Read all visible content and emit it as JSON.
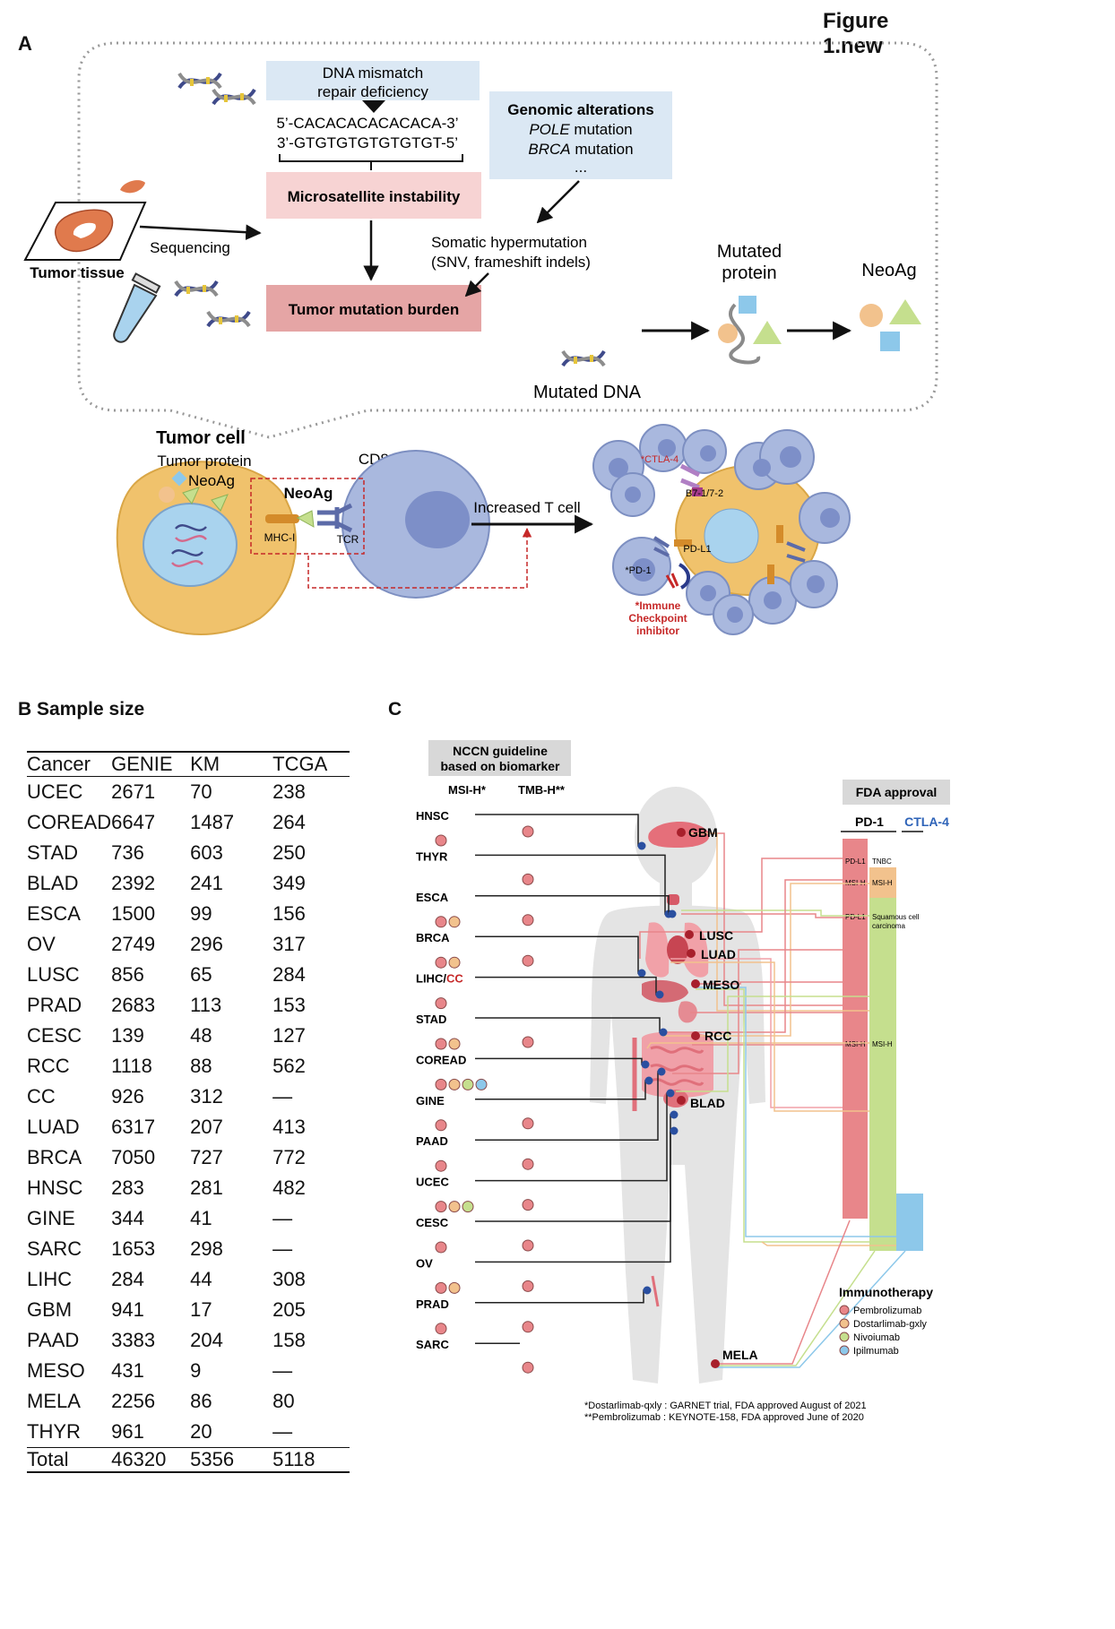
{
  "figure_title": "Figure 1.new",
  "panel_a": {
    "label": "A",
    "mismatch_box": "DNA mismatch repair deficiency",
    "seq_top": "5’-CACACACACACACA-3’",
    "seq_bottom": "3’-GTGTGTGTGTGTGT-5’",
    "genomic_title": "Genomic alterations",
    "genomic_lines": [
      {
        "gene": "POLE",
        "rest": " mutation"
      },
      {
        "gene": "BRCA",
        "rest": " mutation"
      }
    ],
    "genomic_more": "...",
    "msi_box": "Microsatellite instability",
    "somatic_line1": "Somatic hypermutation",
    "somatic_line2": "(SNV, frameshift indels)",
    "tmb_box": "Tumor mutation burden",
    "sequencing": "Sequencing",
    "tumor_tissue": "Tumor tissue",
    "mutated_protein_1": "Mutated",
    "mutated_protein_2": "protein",
    "neoag": "NeoAg",
    "mutated_dna": "Mutated DNA",
    "tumor_cell": "Tumor cell",
    "tumor_protein": "Tumor protein",
    "neoag_small": "NeoAg",
    "neoag_bold": "NeoAg",
    "cd8": "CD8+T cell",
    "mhc": "MHC-I",
    "tcr": "TCR",
    "increased": "Increased T cell",
    "ctla4": "*CTLA-4",
    "b7": "B7-1/7-2",
    "pdl1": "PD-L1",
    "pd1": "*PD-1",
    "ici_1": "*Immune",
    "ici_2": "Checkpoint",
    "ici_3": "inhibitor"
  },
  "panel_b": {
    "label": "B Sample size",
    "headers": [
      "Cancer",
      "GENIE",
      "KM",
      "TCGA"
    ],
    "rows": [
      [
        "UCEC",
        "2671",
        "70",
        "238"
      ],
      [
        "COREAD",
        "6647",
        "1487",
        "264"
      ],
      [
        "STAD",
        "736",
        "603",
        "250"
      ],
      [
        "BLAD",
        "2392",
        "241",
        "349"
      ],
      [
        "ESCA",
        "1500",
        "99",
        "156"
      ],
      [
        "OV",
        "2749",
        "296",
        "317"
      ],
      [
        "LUSC",
        "856",
        "65",
        "284"
      ],
      [
        "PRAD",
        "2683",
        "113",
        "153"
      ],
      [
        "CESC",
        "139",
        "48",
        "127"
      ],
      [
        "RCC",
        "1118",
        "88",
        "562"
      ],
      [
        "CC",
        "926",
        "312",
        "—"
      ],
      [
        "LUAD",
        "6317",
        "207",
        "413"
      ],
      [
        "BRCA",
        "7050",
        "727",
        "772"
      ],
      [
        "HNSC",
        "283",
        "281",
        "482"
      ],
      [
        "GINE",
        "344",
        "41",
        "—"
      ],
      [
        "SARC",
        "1653",
        "298",
        "—"
      ],
      [
        "LIHC",
        "284",
        "44",
        "308"
      ],
      [
        "GBM",
        "941",
        "17",
        "205"
      ],
      [
        "PAAD",
        "3383",
        "204",
        "158"
      ],
      [
        "MESO",
        "431",
        "9",
        "—"
      ],
      [
        "MELA",
        "2256",
        "86",
        "80"
      ],
      [
        "THYR",
        "961",
        "20",
        "—"
      ]
    ],
    "total": [
      "Total",
      "46320",
      "5356",
      "5118"
    ]
  },
  "panel_c": {
    "label": "C",
    "nccn_1": "NCCN guideline",
    "nccn_2": "based on biomarker",
    "msi_col": "MSI-H*",
    "tmb_col": "TMB-H**",
    "fda": "FDA approval",
    "pd1": "PD-1",
    "ctla4": "CTLA-4",
    "cancers": [
      {
        "name": "HNSC",
        "msi": [
          "pembro"
        ],
        "tmb": true
      },
      {
        "name": "THYR",
        "msi": [],
        "tmb": true
      },
      {
        "name": "ESCA",
        "msi": [
          "pembro",
          "dostar"
        ],
        "tmb": true
      },
      {
        "name": "BRCA",
        "msi": [
          "pembro",
          "dostar"
        ],
        "tmb": true
      },
      {
        "name": "LIHC/",
        "name_red": "CC",
        "msi": [
          "pembro"
        ],
        "tmb": false
      },
      {
        "name": "STAD",
        "msi": [
          "pembro",
          "dostar"
        ],
        "tmb": true
      },
      {
        "name": "COREAD",
        "msi": [
          "pembro",
          "dostar",
          "nivo",
          "ipi"
        ],
        "tmb": false
      },
      {
        "name": "GINE",
        "msi": [
          "pembro"
        ],
        "tmb": true
      },
      {
        "name": "PAAD",
        "msi": [
          "pembro"
        ],
        "tmb": true
      },
      {
        "name": "UCEC",
        "msi": [
          "pembro",
          "dostar",
          "nivo"
        ],
        "tmb": true
      },
      {
        "name": "CESC",
        "msi": [
          "pembro"
        ],
        "tmb": true
      },
      {
        "name": "OV",
        "msi": [
          "pembro",
          "dostar"
        ],
        "tmb": true
      },
      {
        "name": "PRAD",
        "msi": [
          "pembro"
        ],
        "tmb": true
      },
      {
        "name": "SARC",
        "msi": [],
        "tmb": true
      }
    ],
    "organs": [
      "GBM",
      "LUSC",
      "LUAD",
      "MESO",
      "RCC",
      "BLAD",
      "MELA"
    ],
    "bar_labels": {
      "pdl1_1": "PD-L1",
      "tnbc": "TNBC",
      "msih_1": "MSI-H",
      "msih_2": "MSI-H",
      "pdl1_2": "PD-L1",
      "squamous_1": "Squamous cell",
      "squamous_2": "carcinoma",
      "msih_3": "MSI-H",
      "msih_4": "MSI-H"
    },
    "legend_title": "Immunotherapy",
    "legend": [
      {
        "key": "pembro",
        "name": "Pembrolizumab",
        "color": "#e8868a"
      },
      {
        "key": "dostar",
        "name": "Dostarlimab-gxly",
        "color": "#f2c28d"
      },
      {
        "key": "nivo",
        "name": "Nivoiumab",
        "color": "#c5df8e"
      },
      {
        "key": "ipi",
        "name": "Ipilmumab",
        "color": "#8dc8ea"
      }
    ],
    "footnote_1": "*Dostarlimab-qxly : GARNET trial, FDA approved August of 2021",
    "footnote_2": "**Pembrolizumab : KEYNOTE-158, FDA approved June of 2020"
  },
  "colors": {
    "msi_pink": "#f7d3d3",
    "tmb_pink": "#e5a5a5",
    "blue_box": "#dbe8f4",
    "cell": "#f0c26c",
    "tcell": "#a9b8de"
  }
}
